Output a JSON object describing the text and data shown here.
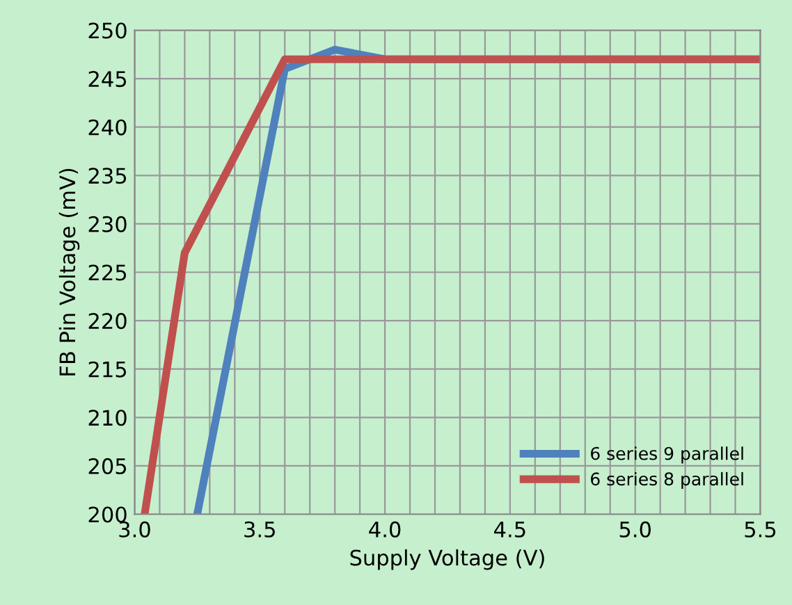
{
  "chart_data": {
    "type": "line",
    "xlabel": "Supply Voltage (V)",
    "ylabel": "FB Pin Voltage (mV)",
    "series": [
      {
        "name": "6 series 9 parallel",
        "color": "#4f81bd",
        "x": [
          3.25,
          3.6,
          3.8,
          4.0,
          5.5
        ],
        "values": [
          200,
          246,
          248,
          247,
          247
        ]
      },
      {
        "name": "6 series 8 parallel",
        "color": "#c0504d",
        "x": [
          3.04,
          3.2,
          3.6,
          5.5
        ],
        "values": [
          200,
          227,
          247,
          247
        ]
      }
    ],
    "xlim": [
      3.0,
      5.5
    ],
    "xticks": [
      {
        "value": 3.0,
        "label": "3.0"
      },
      {
        "value": 3.5,
        "label": "3.5"
      },
      {
        "value": 4.0,
        "label": "4.0"
      },
      {
        "value": 4.5,
        "label": "4.5"
      },
      {
        "value": 5.0,
        "label": "5.0"
      },
      {
        "value": 5.5,
        "label": "5.5"
      }
    ],
    "ylim": [
      200,
      250
    ],
    "yticks": [
      200,
      205,
      210,
      215,
      220,
      225,
      230,
      235,
      240,
      245,
      250
    ],
    "grid": true,
    "legend": "bottom right",
    "marker": "none",
    "line_style": "solid"
  }
}
